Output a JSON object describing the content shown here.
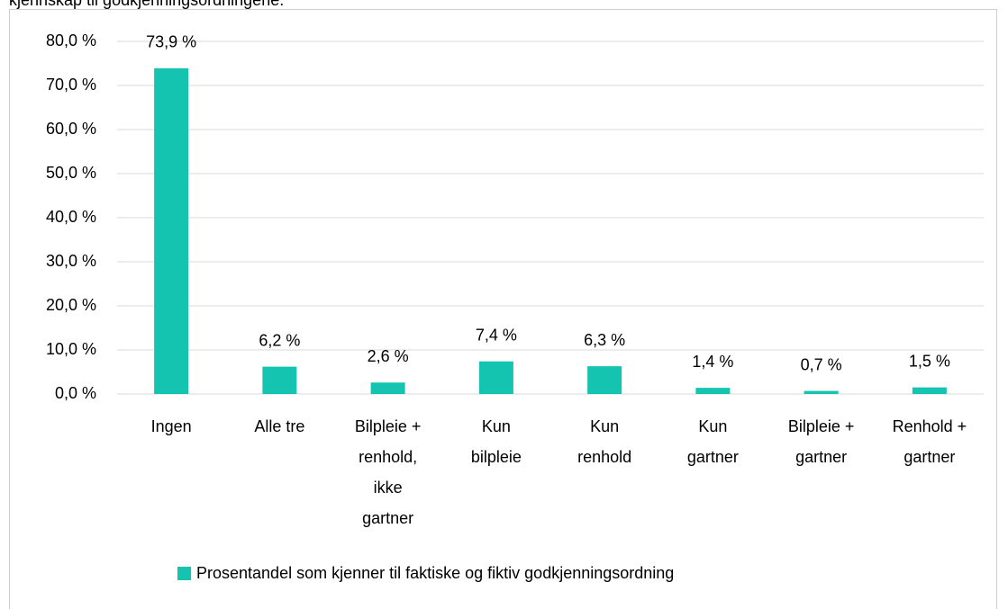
{
  "chart_data": {
    "type": "bar",
    "title": "kjennskap til godkjenningsordningene.",
    "categories": [
      "Ingen",
      "Alle tre",
      "Bilpleie + renhold, ikke gartner",
      "Kun bilpleie",
      "Kun renhold",
      "Kun gartner",
      "Bilpleie + gartner",
      "Renhold + gartner"
    ],
    "series": [
      {
        "name": "Prosentandel som kjenner til faktiske og fiktiv godkjenningsordning",
        "color": "#14c3b0",
        "values": [
          73.9,
          6.2,
          2.6,
          7.4,
          6.3,
          1.4,
          0.7,
          1.5
        ],
        "value_labels": [
          "73,9 %",
          "6,2 %",
          "2,6 %",
          "7,4 %",
          "6,3 %",
          "1,4 %",
          "0,7 %",
          "1,5 %"
        ]
      }
    ],
    "ylim": [
      0,
      80
    ],
    "yticks": [
      {
        "value": 0,
        "label": "0,0 %"
      },
      {
        "value": 10,
        "label": "10,0 %"
      },
      {
        "value": 20,
        "label": "20,0 %"
      },
      {
        "value": 30,
        "label": "30,0 %"
      },
      {
        "value": 40,
        "label": "40,0 %"
      },
      {
        "value": 50,
        "label": "50,0 %"
      },
      {
        "value": 60,
        "label": "60,0 %"
      },
      {
        "value": 70,
        "label": "70,0 %"
      },
      {
        "value": 80,
        "label": "80,0 %"
      }
    ],
    "grid": true,
    "legend": "bottom"
  }
}
